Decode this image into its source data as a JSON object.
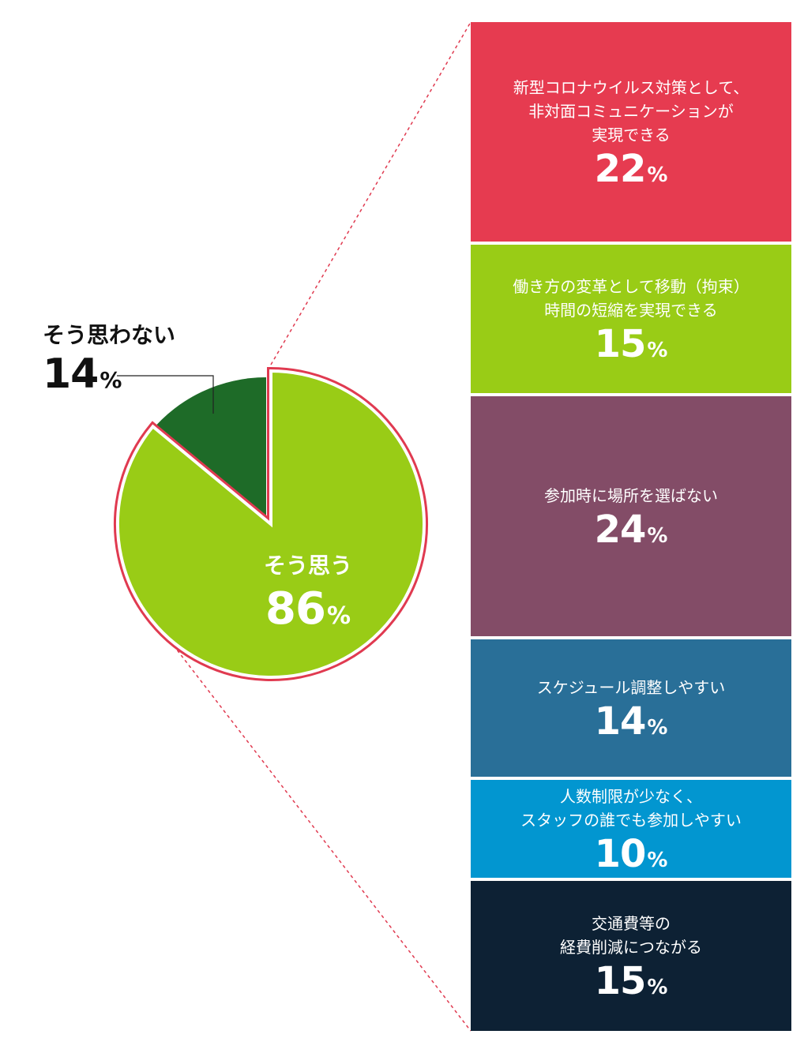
{
  "chart_data": [
    {
      "type": "pie",
      "title": "",
      "slices": [
        {
          "label": "そう思う",
          "value": 86,
          "unit": "%",
          "color": "#99cc16",
          "exploded": true
        },
        {
          "label": "そう思わない",
          "value": 14,
          "unit": "%",
          "color": "#1e6b28"
        }
      ],
      "highlight_outline_color": "#e03a50"
    },
    {
      "type": "bar",
      "stacked_breakdown_of": "そう思う",
      "categories": [
        "新型コロナウイルス対策として、\n非対面コミュニケーションが\n実現できる",
        "働き方の変革として移動（拘束）\n時間の短縮を実現できる",
        "参加時に場所を選ばない",
        "スケジュール調整しやすい",
        "人数制限が少なく、\nスタッフの誰でも参加しやすい",
        "交通費等の\n経費削減につながる"
      ],
      "values": [
        22,
        15,
        24,
        14,
        10,
        15
      ],
      "unit": "%",
      "colors": [
        "#e63b50",
        "#99cc16",
        "#834c67",
        "#296f98",
        "#0296d0",
        "#0d2134"
      ]
    }
  ],
  "labels": {
    "yes": {
      "title": "そう思う",
      "value": "86",
      "sign": "%"
    },
    "no": {
      "title": "そう思わない",
      "value": "14",
      "sign": "%"
    }
  },
  "boxes": [
    {
      "label": "新型コロナウイルス対策として、\n非対面コミュニケーションが\n実現できる",
      "value": "22",
      "sign": "%",
      "color": "#e63b50"
    },
    {
      "label": "働き方の変革として移動（拘束）\n時間の短縮を実現できる",
      "value": "15",
      "sign": "%",
      "color": "#99cc16"
    },
    {
      "label": "参加時に場所を選ばない",
      "value": "24",
      "sign": "%",
      "color": "#834c67"
    },
    {
      "label": "スケジュール調整しやすい",
      "value": "14",
      "sign": "%",
      "color": "#296f98"
    },
    {
      "label": "人数制限が少なく、\nスタッフの誰でも参加しやすい",
      "value": "10",
      "sign": "%",
      "color": "#0296d0"
    },
    {
      "label": "交通費等の\n経費削減につながる",
      "value": "15",
      "sign": "%",
      "color": "#0d2134"
    }
  ]
}
